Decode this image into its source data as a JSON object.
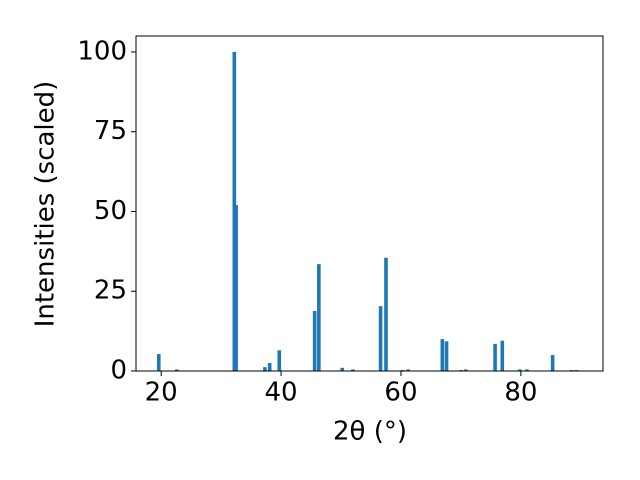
{
  "chart_data": {
    "type": "bar",
    "x_label": "2θ (°)",
    "y_label": "Intensities (scaled)",
    "x": [
      19.6,
      22.6,
      32.2,
      32.5,
      37.3,
      38.1,
      39.7,
      45.6,
      46.3,
      50.2,
      52.0,
      56.6,
      57.5,
      60.3,
      61.2,
      66.9,
      67.6,
      70.0,
      70.8,
      75.7,
      76.9,
      79.8,
      81.0,
      85.3,
      88.5,
      89.3
    ],
    "values": [
      5.3,
      0.5,
      100,
      52,
      1.2,
      2.5,
      6.5,
      18.8,
      33.5,
      1.0,
      0.5,
      20.3,
      35.5,
      0.3,
      0.5,
      10,
      9.3,
      0.3,
      0.5,
      8.5,
      9.5,
      0.5,
      0.5,
      5.0,
      0.3,
      0.3
    ],
    "color": "#1f77b4",
    "xlim": [
      15.8,
      93.7
    ],
    "ylim": [
      0,
      105
    ],
    "xticks": [
      20,
      40,
      60,
      80
    ],
    "yticks": [
      0,
      25,
      50,
      75,
      100
    ]
  }
}
